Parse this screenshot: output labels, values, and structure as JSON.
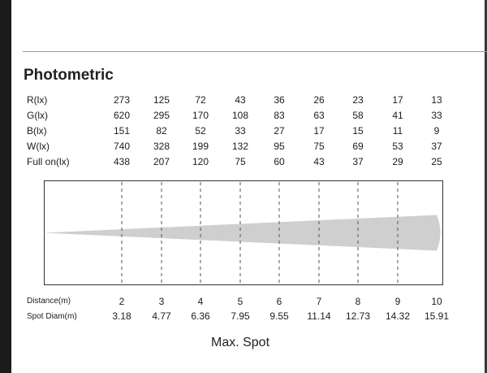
{
  "title": "Photometric",
  "columns_count": 9,
  "rows": [
    {
      "label": "R(lx)",
      "values": [
        "273",
        "125",
        "72",
        "43",
        "36",
        "26",
        "23",
        "17",
        "13"
      ]
    },
    {
      "label": "G(lx)",
      "values": [
        "620",
        "295",
        "170",
        "108",
        "83",
        "63",
        "58",
        "41",
        "33"
      ]
    },
    {
      "label": "B(lx)",
      "values": [
        "151",
        "82",
        "52",
        "33",
        "27",
        "17",
        "15",
        "11",
        "9"
      ]
    },
    {
      "label": "W(lx)",
      "values": [
        "740",
        "328",
        "199",
        "132",
        "95",
        "75",
        "69",
        "53",
        "37"
      ]
    },
    {
      "label": "Full on(lx)",
      "values": [
        "438",
        "207",
        "120",
        "75",
        "60",
        "43",
        "37",
        "29",
        "25"
      ]
    }
  ],
  "distance": {
    "label": "Distance(m)",
    "values": [
      "2",
      "3",
      "4",
      "5",
      "6",
      "7",
      "8",
      "9",
      "10"
    ]
  },
  "spot_diam": {
    "label": "Spot Diam(m)",
    "values": [
      "3.18",
      "4.77",
      "6.36",
      "7.95",
      "9.55",
      "11.14",
      "12.73",
      "14.32",
      "15.91"
    ]
  },
  "caption": "Max. Spot",
  "colors": {
    "beam": "#cfcfcf",
    "guide": "#555555",
    "border": "#333333"
  }
}
